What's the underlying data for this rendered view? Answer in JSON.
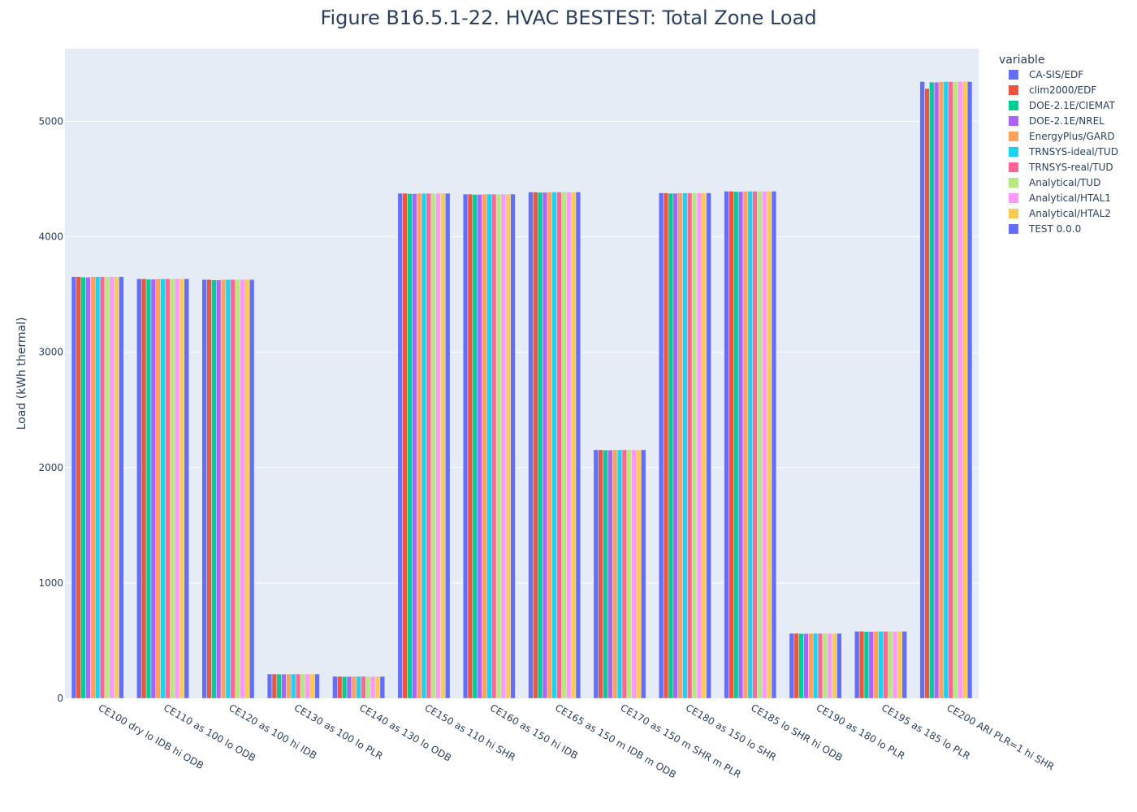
{
  "chart_data": {
    "type": "bar",
    "title": "Figure B16.5.1-22. HVAC BESTEST: Total Zone Load",
    "xlabel": "",
    "ylabel": "Load (kWh thermal)",
    "ylim": [
      0,
      5630
    ],
    "yticks": [
      0,
      1000,
      2000,
      3000,
      4000,
      5000
    ],
    "grid": true,
    "legend_title": "variable",
    "legend_position": "right",
    "categories": [
      "CE100 dry lo IDB hi ODB",
      "CE110 as 100 lo ODB",
      "CE120 as 100 hi IDB",
      "CE130 as 100 lo PLR",
      "CE140 as 130 lo ODB",
      "CE150 as 110 hi SHR",
      "CE160 as 150 hi IDB",
      "CE165 as 150 m IDB m ODB",
      "CE170 as 150 m SHR m PLR",
      "CE180 as 150 lo SHR",
      "CE185 lo SHR hi ODB",
      "CE190 as 180 lo PLR",
      "CE195 as 185 lo PLR",
      "CE200 ARI  PLR=1 hi SHR"
    ],
    "series": [
      {
        "name": "CA-SIS/EDF",
        "color": "#636efa",
        "values": [
          3655,
          3636,
          3630,
          211,
          190,
          4377,
          4370,
          4388,
          2154,
          4380,
          4395,
          563,
          581,
          5345
        ]
      },
      {
        "name": "clim2000/EDF",
        "color": "#ef553b",
        "values": [
          3655,
          3636,
          3630,
          211,
          190,
          4377,
          4370,
          4388,
          2154,
          4380,
          4395,
          563,
          581,
          5285
        ]
      },
      {
        "name": "DOE-2.1E/CIEMAT",
        "color": "#00cc96",
        "values": [
          3650,
          3632,
          3626,
          210,
          189,
          4374,
          4367,
          4385,
          2152,
          4377,
          4392,
          561,
          579,
          5340
        ]
      },
      {
        "name": "DOE-2.1E/NREL",
        "color": "#ab63fa",
        "values": [
          3650,
          3632,
          3626,
          210,
          189,
          4374,
          4367,
          4385,
          2152,
          4377,
          4392,
          561,
          579,
          5340
        ]
      },
      {
        "name": "EnergyPlus/GARD",
        "color": "#ffa15a",
        "values": [
          3655,
          3636,
          3630,
          211,
          190,
          4377,
          4370,
          4388,
          2154,
          4380,
          4395,
          563,
          581,
          5345
        ]
      },
      {
        "name": "TRNSYS-ideal/TUD",
        "color": "#19d3f3",
        "values": [
          3655,
          3636,
          3630,
          211,
          190,
          4377,
          4370,
          4388,
          2154,
          4380,
          4395,
          563,
          581,
          5345
        ]
      },
      {
        "name": "TRNSYS-real/TUD",
        "color": "#ff6692",
        "values": [
          3655,
          3636,
          3630,
          211,
          190,
          4377,
          4370,
          4388,
          2154,
          4380,
          4395,
          563,
          581,
          5345
        ]
      },
      {
        "name": "Analytical/TUD",
        "color": "#b6e880",
        "values": [
          3655,
          3636,
          3630,
          211,
          190,
          4377,
          4370,
          4388,
          2154,
          4380,
          4395,
          563,
          581,
          5345
        ]
      },
      {
        "name": "Analytical/HTAL1",
        "color": "#ff97ff",
        "values": [
          3655,
          3636,
          3630,
          211,
          190,
          4377,
          4370,
          4388,
          2154,
          4380,
          4395,
          563,
          581,
          5345
        ]
      },
      {
        "name": "Analytical/HTAL2",
        "color": "#fecb52",
        "values": [
          3655,
          3636,
          3630,
          211,
          190,
          4377,
          4370,
          4388,
          2154,
          4380,
          4395,
          563,
          581,
          5345
        ]
      },
      {
        "name": "TEST 0.0.0",
        "color": "#636efa",
        "values": [
          3655,
          3636,
          3630,
          211,
          190,
          4377,
          4370,
          4388,
          2154,
          4380,
          4395,
          563,
          581,
          5345
        ]
      }
    ]
  }
}
